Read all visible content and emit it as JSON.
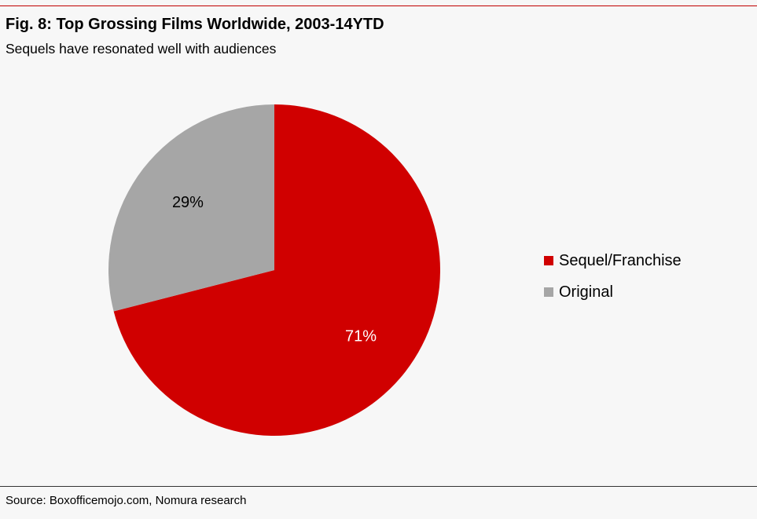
{
  "title": "Fig. 8: Top Grossing Films Worldwide, 2003-14YTD",
  "subtitle": "Sequels have resonated well with audiences",
  "source": "Source: Boxofficemojo.com, Nomura research",
  "chart_data": {
    "type": "pie",
    "start": "12 o'clock",
    "direction": "clockwise",
    "legend_placement": "right",
    "slices": [
      {
        "label": "Sequel/Franchise",
        "value": 71,
        "data_label": "71%",
        "color": "#d00000",
        "label_color": "#ffffff"
      },
      {
        "label": "Original",
        "value": 29,
        "data_label": "29%",
        "color": "#a6a6a6",
        "label_color": "#000000"
      }
    ]
  }
}
